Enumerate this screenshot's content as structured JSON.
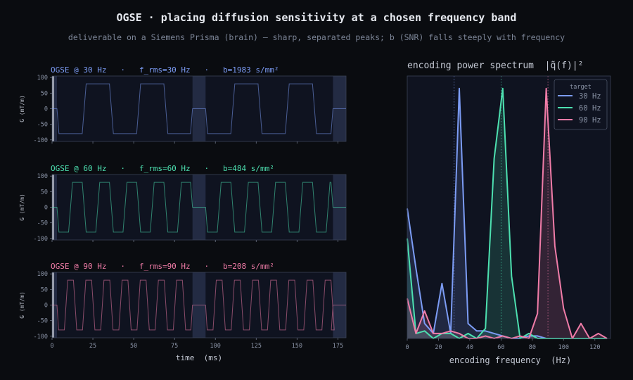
{
  "figure": {
    "title": "OGSE  ·  placing diffusion sensitivity at a chosen frequency band",
    "subtitle": "deliverable on a Siemens Prisma (brain) — sharp, separated peaks; b (SNR) falls steeply with frequency",
    "background": "#0a0c10",
    "panel_bg": "#0f1320",
    "shade_color": "#27304a"
  },
  "chart_data": [
    {
      "type": "line",
      "title": "OGSE @ 30 Hz   ·   f_rms=30 Hz   ·   b=1983 s/mm²",
      "color": "#7c9cf5",
      "ylabel": "G (mT/m)",
      "xlabel": "",
      "xlim": [
        0,
        180
      ],
      "ylim": [
        -105,
        105
      ],
      "yticks": [
        100,
        50,
        0,
        -50,
        -100
      ],
      "xticks": [
        0,
        25,
        50,
        75,
        100,
        125,
        150,
        175
      ],
      "show_xticklabels": false,
      "frequency_hz": 30,
      "amplitude_mT_per_m": 80,
      "gradient_windows_ms": [
        [
          3,
          86
        ],
        [
          94,
          172
        ]
      ],
      "shaded_intervals_ms": [
        [
          0,
          3
        ],
        [
          86,
          94
        ],
        [
          172,
          180
        ]
      ]
    },
    {
      "type": "line",
      "title": "OGSE @ 60 Hz   ·   f_rms=60 Hz   ·   b=484 s/mm²",
      "color": "#4de0b0",
      "ylabel": "G (mT/m)",
      "xlabel": "",
      "xlim": [
        0,
        180
      ],
      "ylim": [
        -105,
        105
      ],
      "yticks": [
        100,
        50,
        0,
        -50,
        -100
      ],
      "xticks": [
        0,
        25,
        50,
        75,
        100,
        125,
        150,
        175
      ],
      "show_xticklabels": false,
      "frequency_hz": 60,
      "amplitude_mT_per_m": 80,
      "gradient_windows_ms": [
        [
          3,
          86
        ],
        [
          94,
          172
        ]
      ],
      "shaded_intervals_ms": [
        [
          0,
          3
        ],
        [
          86,
          94
        ],
        [
          172,
          180
        ]
      ]
    },
    {
      "type": "line",
      "title": "OGSE @ 90 Hz   ·   f_rms=90 Hz   ·   b=208 s/mm²",
      "color": "#f07ca8",
      "ylabel": "G (mT/m)",
      "xlabel": "time  (ms)",
      "xlim": [
        0,
        180
      ],
      "ylim": [
        -105,
        105
      ],
      "yticks": [
        100,
        50,
        0,
        -50,
        -100
      ],
      "xticks": [
        0,
        25,
        50,
        75,
        100,
        125,
        150,
        175
      ],
      "show_xticklabels": true,
      "frequency_hz": 90,
      "amplitude_mT_per_m": 80,
      "gradient_windows_ms": [
        [
          3,
          86
        ],
        [
          94,
          172
        ]
      ],
      "shaded_intervals_ms": [
        [
          0,
          3
        ],
        [
          86,
          94
        ],
        [
          172,
          180
        ]
      ]
    },
    {
      "type": "area",
      "title": "encoding power spectrum  |q̃(f)|²",
      "xlabel": "encoding frequency  (Hz)",
      "ylabel": "",
      "xlim": [
        0,
        130
      ],
      "ylim": [
        0,
        1.05
      ],
      "xticks": [
        0,
        20,
        40,
        60,
        80,
        100,
        120
      ],
      "grid": false,
      "legend": {
        "title": "target",
        "position": "top-right"
      },
      "target_lines_hz": [
        30,
        60,
        90
      ],
      "series": [
        {
          "name": "30 Hz",
          "color": "#7c9cf5",
          "x": [
            0,
            5.6,
            11.1,
            16.7,
            22.2,
            27.8,
            33.3,
            38.9,
            44.4,
            50,
            55.6,
            61.1,
            66.7,
            72.2,
            77.8,
            83.3,
            88.9,
            94.4,
            100,
            105.6,
            111.1,
            116.7,
            122.2,
            127.8
          ],
          "y": [
            0.52,
            0.28,
            0.06,
            0.02,
            0.22,
            0.02,
            1.0,
            0.06,
            0.03,
            0.03,
            0.02,
            0.01,
            0.0,
            0.0,
            0.01,
            0.01,
            0.0,
            0.0,
            0.0,
            0.0,
            0.0,
            0.0,
            0.0,
            0.0
          ]
        },
        {
          "name": "60 Hz",
          "color": "#4de0b0",
          "x": [
            0,
            5.6,
            11.1,
            16.7,
            22.2,
            27.8,
            33.3,
            38.9,
            44.4,
            50,
            55.6,
            61.1,
            66.7,
            72.2,
            77.8,
            83.3,
            88.9,
            94.4,
            100,
            105.6,
            111.1,
            116.7,
            122.2,
            127.8
          ],
          "y": [
            0.4,
            0.02,
            0.03,
            0.0,
            0.02,
            0.02,
            0.0,
            0.02,
            0.0,
            0.04,
            0.72,
            1.0,
            0.25,
            0.0,
            0.02,
            0.0,
            0.0,
            0.0,
            0.0,
            0.0,
            0.0,
            0.0,
            0.0,
            0.0
          ]
        },
        {
          "name": "90 Hz",
          "color": "#f07ca8",
          "x": [
            0,
            5.6,
            11.1,
            16.7,
            22.2,
            27.8,
            33.3,
            38.9,
            44.4,
            50,
            55.6,
            61.1,
            66.7,
            72.2,
            77.8,
            83.3,
            88.9,
            94.4,
            100,
            105.6,
            111.1,
            116.7,
            122.2,
            127.8
          ],
          "y": [
            0.16,
            0.02,
            0.11,
            0.02,
            0.02,
            0.03,
            0.02,
            0.0,
            0.0,
            0.01,
            0.0,
            0.01,
            0.0,
            0.01,
            0.0,
            0.1,
            1.0,
            0.37,
            0.12,
            0.0,
            0.06,
            0.0,
            0.02,
            0.0
          ]
        }
      ]
    }
  ]
}
